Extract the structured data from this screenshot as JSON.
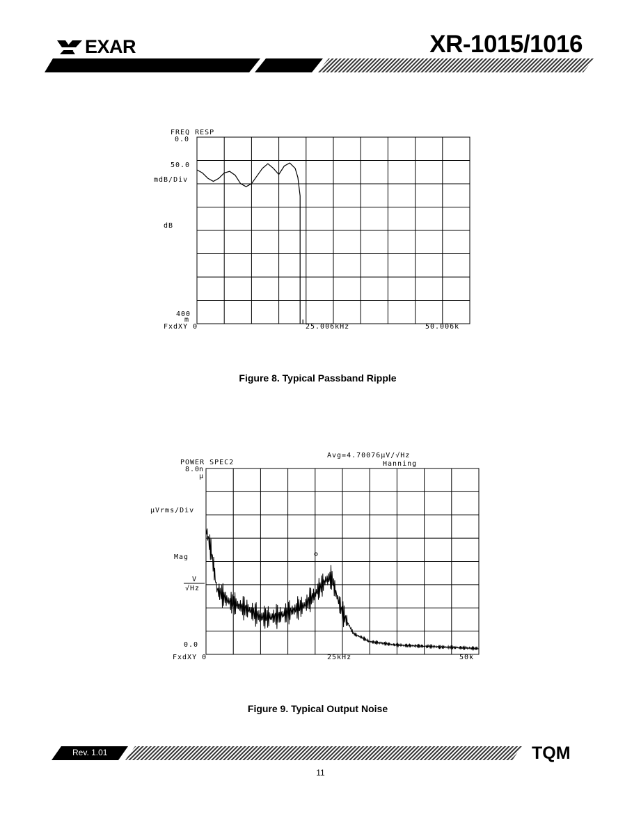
{
  "header": {
    "brand": "EXAR",
    "doc_title": "XR-1015/1016"
  },
  "figure8": {
    "labels": {
      "title": "FREQ RESP",
      "top": "0.0",
      "ref": "50.0",
      "scale": "mdB/Div",
      "unit": "dB",
      "bottom": "400",
      "bottom_sub": "m",
      "fxdxy": "FxdXY 0",
      "mid": "25.006kHz",
      "right": "50.006k"
    },
    "caption": "Figure 8.  Typical Passband Ripple"
  },
  "figure9": {
    "labels": {
      "title": "POWER SPEC2",
      "top": "8.0",
      "top_sub": "n",
      "top_mu": "μ",
      "scale": "μVrms/Div",
      "unit": "Mag",
      "unit_v": "V",
      "unit_hz": "√Hz",
      "bottom": "0.0",
      "fxdxy": "FxdXY 0",
      "mid": "25kHz",
      "right": "50k",
      "avg": "Avg=4.70076μV/√Hz",
      "window": "Hanning"
    },
    "caption": "Figure 9.  Typical Output Noise"
  },
  "footer": {
    "rev": "Rev. 1.01",
    "page": "11",
    "tqm": "TQM"
  },
  "chart_data": [
    {
      "type": "line",
      "title": "FREQ RESP",
      "ylabel": "dB",
      "x_ticks": [
        "25.006kHz",
        "50.006k"
      ],
      "x": [
        0,
        1,
        2,
        3,
        4,
        5,
        6,
        7,
        8,
        9,
        10,
        11,
        12,
        13,
        14,
        15,
        16,
        17,
        18,
        18.5,
        18.9
      ],
      "values": [
        50,
        30,
        -5,
        -25,
        -5,
        30,
        40,
        15,
        -40,
        -60,
        -40,
        10,
        60,
        90,
        60,
        20,
        75,
        95,
        60,
        0,
        -120
      ],
      "scale": "mdB/Div"
    },
    {
      "type": "line",
      "title": "POWER SPEC2",
      "ylabel": "Mag V/√Hz",
      "x_ticks": [
        "25kHz",
        "50k"
      ],
      "x": [
        0,
        1,
        2,
        4,
        6,
        8,
        10,
        12,
        14,
        16,
        18,
        20,
        22,
        23,
        24,
        25,
        27,
        30,
        35,
        40,
        45,
        50
      ],
      "values": [
        5.4,
        4.4,
        2.8,
        2.3,
        2.1,
        1.9,
        1.6,
        1.6,
        1.7,
        1.9,
        2.1,
        2.6,
        3.2,
        3.3,
        2.5,
        1.8,
        0.9,
        0.55,
        0.4,
        0.35,
        0.3,
        0.25
      ],
      "scale": "μVrms/Div",
      "annotations": [
        "Avg=4.70076μV/√Hz",
        "Hanning"
      ]
    }
  ]
}
